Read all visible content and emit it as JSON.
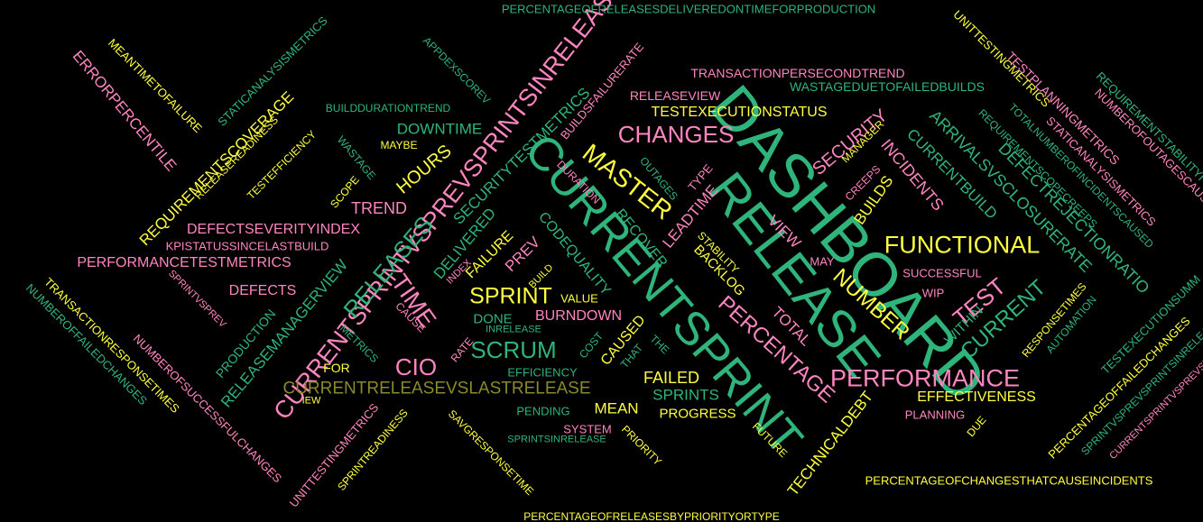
{
  "palette": {
    "background": "#000000",
    "green": "#2fb47c",
    "pink": "#ff85c0",
    "yellow": "#ffff40",
    "olive": "#8a8a2a"
  },
  "words": [
    {
      "id": "dashboard",
      "text": "DASHBOARD",
      "color": "green"
    },
    {
      "id": "release",
      "text": "RELEASE",
      "color": "green"
    },
    {
      "id": "currentsprint",
      "text": "CURRENTSPRINT",
      "color": "green"
    },
    {
      "id": "currentsprintvsprev",
      "text": "CURRENTSPRINTVSPREVSPRINTSINRELEASE",
      "color": "pink"
    },
    {
      "id": "master",
      "text": "MASTER",
      "color": "yellow"
    },
    {
      "id": "changes",
      "text": "CHANGES",
      "color": "pink"
    },
    {
      "id": "functional",
      "text": "FUNCTIONAL",
      "color": "yellow"
    },
    {
      "id": "performance",
      "text": "PERFORMANCE",
      "color": "pink"
    },
    {
      "id": "cio",
      "text": "CIO",
      "color": "pink"
    },
    {
      "id": "scrum",
      "text": "SCRUM",
      "color": "green"
    },
    {
      "id": "sprint",
      "text": "SPRINT",
      "color": "yellow"
    },
    {
      "id": "time",
      "text": "TIME",
      "color": "pink"
    },
    {
      "id": "releases",
      "text": "RELEASES",
      "color": "green"
    },
    {
      "id": "number",
      "text": "NUMBER",
      "color": "yellow"
    },
    {
      "id": "percentage",
      "text": "PERCENTAGE",
      "color": "pink"
    },
    {
      "id": "test",
      "text": "TEST",
      "color": "pink"
    },
    {
      "id": "current",
      "text": "CURRENT",
      "color": "green"
    },
    {
      "id": "currentreleasevslastrelease",
      "text": "CURRENTRELEASEVSLASTRELEASE",
      "color": "olive"
    },
    {
      "id": "releasemanagerview",
      "text": "RELEASEMANAGERVIEW",
      "color": "green"
    },
    {
      "id": "arrivalsvsclosurerate",
      "text": "ARRIVALSVSCLOSURERATE",
      "color": "green"
    },
    {
      "id": "defectrejectionratio",
      "text": "DEFECTREJECTIONRATIO",
      "color": "green"
    },
    {
      "id": "currentbuild",
      "text": "CURRENTBUILD",
      "color": "green"
    },
    {
      "id": "security",
      "text": "SECURITY",
      "color": "pink"
    },
    {
      "id": "incidents",
      "text": "INCIDENTS",
      "color": "pink"
    },
    {
      "id": "builds",
      "text": "BUILDS",
      "color": "yellow"
    },
    {
      "id": "testexecutionstatus",
      "text": "TESTEXECUTIONSTATUS",
      "color": "yellow"
    },
    {
      "id": "releaseview",
      "text": "RELEASEVIEW",
      "color": "pink"
    },
    {
      "id": "transactionpersecondtrend",
      "text": "TRANSACTIONPERSECONDTREND",
      "color": "pink"
    },
    {
      "id": "wastageduetofailedbuilds",
      "text": "WASTAGEDUETOFAILEDBUILDS",
      "color": "green"
    },
    {
      "id": "percentageofreleasesdeliveredontime",
      "text": "PERCENTAGEOFRELEASESDELIVEREDONTIMEFORPRODUCTION",
      "color": "green"
    },
    {
      "id": "downtime",
      "text": "DOWNTIME",
      "color": "green"
    },
    {
      "id": "hours",
      "text": "HOURS",
      "color": "yellow"
    },
    {
      "id": "trend",
      "text": "TREND",
      "color": "pink"
    },
    {
      "id": "defectseverityindex",
      "text": "DEFECTSEVERITYINDEX",
      "color": "pink"
    },
    {
      "id": "kpistatussincelastbuild",
      "text": "KPISTATUSSINCELASTBUILD",
      "color": "pink"
    },
    {
      "id": "performancetestmetrics",
      "text": "PERFORMANCETESTMETRICS",
      "color": "pink"
    },
    {
      "id": "defects",
      "text": "DEFECTS",
      "color": "pink"
    },
    {
      "id": "requirementscoverage",
      "text": "REQUIREMENTSCOVERAGE",
      "color": "yellow"
    },
    {
      "id": "errorpercentile",
      "text": "ERRORPERCENTILE",
      "color": "pink"
    },
    {
      "id": "meantimetofailure",
      "text": "MEANTIMETOFAILURE",
      "color": "yellow"
    },
    {
      "id": "staticanalysismetrics",
      "text": "STATICANALYSISMETRICS",
      "color": "green"
    },
    {
      "id": "releasereadiness",
      "text": "RELEASEREADINESS",
      "color": "yellow"
    },
    {
      "id": "testefficiency",
      "text": "TESTEFFICIENCY",
      "color": "yellow"
    },
    {
      "id": "wastage",
      "text": "WASTAGE",
      "color": "green"
    },
    {
      "id": "scope",
      "text": "SCOPE",
      "color": "yellow"
    },
    {
      "id": "maybe",
      "text": "MAYBE",
      "color": "yellow"
    },
    {
      "id": "builddurationtrend",
      "text": "BUILDDURATIONTREND",
      "color": "green"
    },
    {
      "id": "appdexscorev",
      "text": "APPDEXSCOREV",
      "color": "green"
    },
    {
      "id": "buildsfailurerate",
      "text": "BUILDSFAILURERATE",
      "color": "pink"
    },
    {
      "id": "securitytestmetrics",
      "text": "SECURITYTESTMETRICS",
      "color": "green"
    },
    {
      "id": "delivered",
      "text": "DELIVERED",
      "color": "green"
    },
    {
      "id": "failure",
      "text": "FAILURE",
      "color": "yellow"
    },
    {
      "id": "prev",
      "text": "PREV",
      "color": "pink"
    },
    {
      "id": "codequality",
      "text": "CODEQUALITY",
      "color": "green"
    },
    {
      "id": "recover",
      "text": "RECOVER",
      "color": "green"
    },
    {
      "id": "leadtime",
      "text": "LEADTIME",
      "color": "pink"
    },
    {
      "id": "duration",
      "text": "DURATION",
      "color": "pink"
    },
    {
      "id": "outages",
      "text": "OUTAGES",
      "color": "green"
    },
    {
      "id": "type",
      "text": "TYPE",
      "color": "pink"
    },
    {
      "id": "backlog",
      "text": "BACKLOG",
      "color": "yellow"
    },
    {
      "id": "stability",
      "text": "STABILITY",
      "color": "yellow"
    },
    {
      "id": "view",
      "text": "VIEW",
      "color": "pink"
    },
    {
      "id": "total",
      "text": "TOTAL",
      "color": "pink"
    },
    {
      "id": "may",
      "text": "MAY",
      "color": "pink"
    },
    {
      "id": "successful",
      "text": "SUCCESSFUL",
      "color": "pink"
    },
    {
      "id": "wip",
      "text": "WIP",
      "color": "pink"
    },
    {
      "id": "within",
      "text": "WITHIN",
      "color": "green"
    },
    {
      "id": "creeps",
      "text": "CREEPS",
      "color": "pink"
    },
    {
      "id": "manager",
      "text": "MANAGER",
      "color": "yellow"
    },
    {
      "id": "value",
      "text": "VALUE",
      "color": "yellow"
    },
    {
      "id": "done",
      "text": "DONE",
      "color": "green"
    },
    {
      "id": "burndown",
      "text": "BURNDOWN",
      "color": "pink"
    },
    {
      "id": "inrelease",
      "text": "INRELEASE",
      "color": "green"
    },
    {
      "id": "caused",
      "text": "CAUSED",
      "color": "yellow"
    },
    {
      "id": "cost",
      "text": "COST",
      "color": "green"
    },
    {
      "id": "that",
      "text": "THAT",
      "color": "green"
    },
    {
      "id": "the",
      "text": "THE",
      "color": "green"
    },
    {
      "id": "efficiency",
      "text": "EFFICIENCY",
      "color": "green"
    },
    {
      "id": "failed",
      "text": "FAILED",
      "color": "yellow"
    },
    {
      "id": "sprints",
      "text": "SPRINTS",
      "color": "green"
    },
    {
      "id": "mean",
      "text": "MEAN",
      "color": "yellow"
    },
    {
      "id": "pending",
      "text": "PENDING",
      "color": "green"
    },
    {
      "id": "progress",
      "text": "PROGRESS",
      "color": "yellow"
    },
    {
      "id": "system",
      "text": "SYSTEM",
      "color": "pink"
    },
    {
      "id": "priority",
      "text": "PRIORITY",
      "color": "yellow"
    },
    {
      "id": "sprintsinrelease",
      "text": "SPRINTSINRELEASE",
      "color": "green"
    },
    {
      "id": "future",
      "text": "FUTURE",
      "color": "yellow"
    },
    {
      "id": "effectiveness",
      "text": "EFFECTIVENESS",
      "color": "yellow"
    },
    {
      "id": "planning",
      "text": "PLANNING",
      "color": "pink"
    },
    {
      "id": "due",
      "text": "DUE",
      "color": "yellow"
    },
    {
      "id": "technicaldebt",
      "text": "TECHNICALDEBT",
      "color": "yellow"
    },
    {
      "id": "responsetimes",
      "text": "RESPONSETIMES",
      "color": "yellow"
    },
    {
      "id": "automation",
      "text": "AUTOMATION",
      "color": "green"
    },
    {
      "id": "percentageofchangesthatcauseincidents",
      "text": "PERCENTAGEOFCHANGESTHATCAUSEINCIDENTS",
      "color": "yellow"
    },
    {
      "id": "percentageofreleasesbypriorityortype",
      "text": "PERCENTAGEOFRELEASESBYPRIORITYORTYPE",
      "color": "yellow"
    },
    {
      "id": "savgresponsetime",
      "text": "SAVGRESPONSETIME",
      "color": "yellow"
    },
    {
      "id": "sprintreadiness",
      "text": "SPRINTREADINESS",
      "color": "yellow"
    },
    {
      "id": "unittestingmetrics_low",
      "text": "UNITTESTINGMETRICS",
      "color": "pink"
    },
    {
      "id": "numberofsuccessfulchanges",
      "text": "NUMBEROFSUCCESSFULCHANGES",
      "color": "pink"
    },
    {
      "id": "transactionresponsetimes",
      "text": "TRANSACTIONRESPONSETIMES",
      "color": "yellow"
    },
    {
      "id": "numberoffailedchanges",
      "text": "NUMBEROFFAILEDCHANGES",
      "color": "green"
    },
    {
      "id": "sprintvsprev",
      "text": "SPRINTVSPREV",
      "color": "pink"
    },
    {
      "id": "production",
      "text": "PRODUCTION",
      "color": "green"
    },
    {
      "id": "metrics",
      "text": "METRICS",
      "color": "green"
    },
    {
      "id": "for",
      "text": "FOR",
      "color": "yellow"
    },
    {
      "id": "iew",
      "text": "IEW",
      "color": "yellow"
    },
    {
      "id": "cause",
      "text": "CAUSE",
      "color": "pink"
    },
    {
      "id": "rate",
      "text": "RATE",
      "color": "pink"
    },
    {
      "id": "index",
      "text": "INDEX",
      "color": "pink"
    },
    {
      "id": "build",
      "text": "BUILD",
      "color": "yellow"
    },
    {
      "id": "unittestingmetrics_top",
      "text": "UNITTESTINGMETRICS",
      "color": "yellow"
    },
    {
      "id": "testplanningmetrics",
      "text": "TESTPLANNINGMETRICS",
      "color": "pink"
    },
    {
      "id": "staticanalysismetrics2",
      "text": "STATICANALYSISMETRICS",
      "color": "pink"
    },
    {
      "id": "totalnumberofincidentscaused",
      "text": "TOTALNUMBEROFINCIDENTSCAUSED",
      "color": "green"
    },
    {
      "id": "requirementscopecreeps",
      "text": "REQUIREMENTSCOPECREEPS",
      "color": "green"
    },
    {
      "id": "numberofoutagescaused",
      "text": "NUMBEROFOUTAGESCAUSED",
      "color": "pink"
    },
    {
      "id": "requirementstability",
      "text": "REQUIREMENTSTABILITYI",
      "color": "green"
    },
    {
      "id": "testexecutionsumm",
      "text": "TESTEXECUTIONSUMM",
      "color": "green"
    },
    {
      "id": "percentageoffailedchanges",
      "text": "PERCENTAGEOFFAILEDCHANGES",
      "color": "yellow"
    },
    {
      "id": "sprintvsprevsprintsinrelease",
      "text": "SPRINTVSPREVSPRINTSINRELEASE",
      "color": "green"
    },
    {
      "id": "currentsprintvsprevsm",
      "text": "CURRENTSPRINTVSPREVSPRI",
      "color": "pink"
    }
  ]
}
